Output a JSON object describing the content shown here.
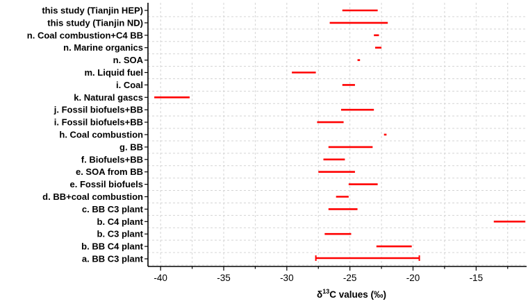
{
  "chart_data": {
    "type": "range-bar",
    "orientation": "horizontal",
    "xlabel_main": "δ",
    "xlabel_sup": "13",
    "xlabel_rest": "C values (‰)",
    "xlim": [
      -41,
      -11
    ],
    "xticks": [
      -40,
      -35,
      -30,
      -25,
      -20,
      -15
    ],
    "xtick_labels": [
      "-40",
      "-35",
      "-30",
      "-25",
      "-20",
      "-15"
    ],
    "grid": true,
    "series_color": "#ff0000",
    "categories": [
      {
        "label": "this study (Tianjin HEP)",
        "range": [
          -25.6,
          -22.8
        ],
        "errorbar": false
      },
      {
        "label": "this study (Tianjin ND)",
        "range": [
          -26.6,
          -22.0
        ],
        "errorbar": false
      },
      {
        "label": "n. Coal combustion+C4 BB",
        "range": [
          -23.1,
          -22.7
        ],
        "errorbar": false
      },
      {
        "label": "n. Marine organics",
        "range": [
          -23.0,
          -22.5
        ],
        "errorbar": false
      },
      {
        "label": "n. SOA",
        "range": [
          -24.4,
          -24.2
        ],
        "errorbar": false
      },
      {
        "label": "m. Liquid fuel",
        "range": [
          -29.6,
          -27.7
        ],
        "errorbar": false
      },
      {
        "label": "i. Coal",
        "range": [
          -25.6,
          -24.6
        ],
        "errorbar": false
      },
      {
        "label": "k. Natural gascs",
        "range": [
          -40.5,
          -37.7
        ],
        "errorbar": false
      },
      {
        "label": "j. Fossil biofuels+BB",
        "range": [
          -25.7,
          -23.1
        ],
        "errorbar": false
      },
      {
        "label": "i. Fossil biofuels+BB",
        "range": [
          -27.6,
          -25.5
        ],
        "errorbar": false
      },
      {
        "label": "h. Coal combustion",
        "range": [
          -22.3,
          -22.1
        ],
        "errorbar": false
      },
      {
        "label": "g. BB",
        "range": [
          -26.7,
          -23.2
        ],
        "errorbar": false
      },
      {
        "label": "f. Biofuels+BB",
        "range": [
          -27.1,
          -25.4
        ],
        "errorbar": false
      },
      {
        "label": "e. SOA from BB",
        "range": [
          -27.5,
          -24.6
        ],
        "errorbar": false
      },
      {
        "label": "e. Fossil biofuels",
        "range": [
          -25.1,
          -22.8
        ],
        "errorbar": false
      },
      {
        "label": "d. BB+coal combustion",
        "range": [
          -26.1,
          -25.1
        ],
        "errorbar": false
      },
      {
        "label": "c. BB C3 plant",
        "range": [
          -26.7,
          -24.4
        ],
        "errorbar": false
      },
      {
        "label": "b. C4 plant",
        "range": [
          -13.6,
          -11.1
        ],
        "errorbar": false
      },
      {
        "label": "b. C3 plant",
        "range": [
          -27.0,
          -24.9
        ],
        "errorbar": false
      },
      {
        "label": "b. BB C4 plant",
        "range": [
          -22.9,
          -20.1
        ],
        "errorbar": false
      },
      {
        "label": "a. BB C3 plant",
        "range": [
          -27.7,
          -19.5
        ],
        "errorbar": true
      }
    ]
  }
}
